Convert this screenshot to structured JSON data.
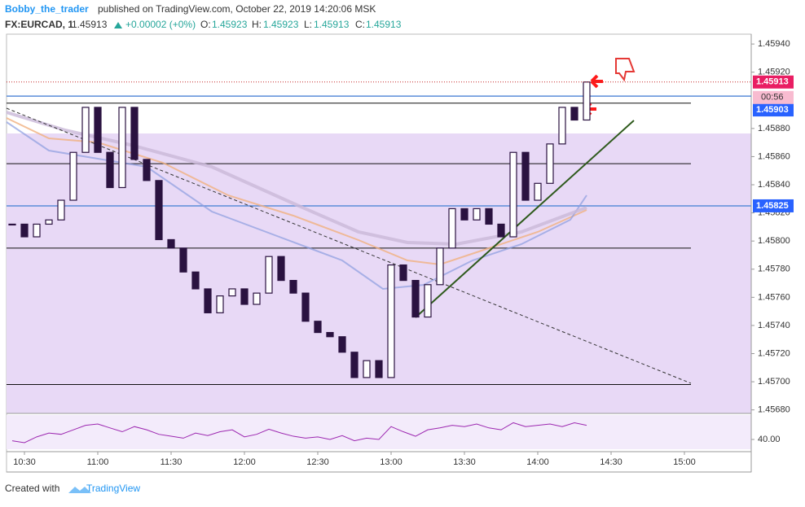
{
  "header": {
    "author": "Bobby_the_trader",
    "published": "published on TradingView.com, October 22, 2019 14:20:06 MSK",
    "symbol": "FX:EURCAD, 1",
    "last": "1.45913",
    "change": "+0.00002 (+0%)",
    "open_label": "O:",
    "open": "1.45923",
    "high_label": "H:",
    "high": "1.45923",
    "low_label": "L:",
    "low": "1.45913",
    "close_label": "C:",
    "close": "1.45913"
  },
  "footer": {
    "created": "Created with",
    "brand": "TradingView"
  },
  "chart_data": {
    "type": "candlestick",
    "x": [
      "10:25",
      "10:30",
      "10:35",
      "10:40",
      "10:45",
      "10:50",
      "10:55",
      "11:00",
      "11:05",
      "11:10",
      "11:15",
      "11:20",
      "11:25",
      "11:30",
      "11:35",
      "11:40",
      "11:45",
      "11:50",
      "11:55",
      "12:00",
      "12:05",
      "12:10",
      "12:15",
      "12:20",
      "12:25",
      "12:30",
      "12:35",
      "12:40",
      "12:45",
      "12:50",
      "12:55",
      "13:00",
      "13:05",
      "13:10",
      "13:15",
      "13:20",
      "13:25",
      "13:30",
      "13:35",
      "13:40",
      "13:45",
      "13:50",
      "13:55",
      "14:00",
      "14:05",
      "14:10",
      "14:15",
      "14:20"
    ],
    "series": [
      {
        "name": "EURCAD",
        "color": "#2a1240",
        "values": [
          1.45812,
          1.45803,
          1.45812,
          1.45815,
          1.45829,
          1.45863,
          1.45895,
          1.45863,
          1.45838,
          1.45895,
          1.45858,
          1.45843,
          1.45801,
          1.45795,
          1.45778,
          1.45766,
          1.45749,
          1.45761,
          1.45766,
          1.45755,
          1.45763,
          1.45789,
          1.45772,
          1.45763,
          1.45743,
          1.45735,
          1.45732,
          1.45721,
          1.45703,
          1.45715,
          1.45703,
          1.45783,
          1.45772,
          1.45746,
          1.45769,
          1.45795,
          1.45823,
          1.45815,
          1.45823,
          1.45812,
          1.45803,
          1.45863,
          1.45829,
          1.45841,
          1.45869,
          1.45895,
          1.45886,
          1.45913
        ]
      },
      {
        "name": "RSI",
        "color": "#9c27b0",
        "axis": "y2",
        "values": [
          38,
          35,
          44,
          50,
          48,
          55,
          62,
          64,
          58,
          52,
          60,
          55,
          48,
          45,
          42,
          50,
          46,
          52,
          55,
          44,
          48,
          56,
          50,
          45,
          42,
          44,
          40,
          46,
          38,
          42,
          40,
          60,
          52,
          45,
          55,
          58,
          62,
          60,
          64,
          58,
          55,
          66,
          60,
          62,
          64,
          60,
          66,
          62
        ]
      }
    ],
    "ylim": [
      1.456775,
      1.45947
    ],
    "yticks": [
      {
        "value": 1.4594,
        "label": "1.45940"
      },
      {
        "value": 1.4592,
        "label": "1.45920"
      },
      {
        "value": 1.4588,
        "label": "1.45880"
      },
      {
        "value": 1.4586,
        "label": "1.45860"
      },
      {
        "value": 1.4584,
        "label": "1.45840"
      },
      {
        "value": 1.4582,
        "label": "1.45820"
      },
      {
        "value": 1.458,
        "label": "1.45800"
      },
      {
        "value": 1.4578,
        "label": "1.45780"
      },
      {
        "value": 1.4576,
        "label": "1.45760"
      },
      {
        "value": 1.4574,
        "label": "1.45740"
      },
      {
        "value": 1.4572,
        "label": "1.45720"
      },
      {
        "value": 1.457,
        "label": "1.45700"
      },
      {
        "value": 1.4568,
        "label": "1.45680"
      }
    ],
    "y2lim": [
      21,
      78
    ],
    "y2ticks": [
      {
        "value": 40,
        "label": "40.00"
      }
    ],
    "xticks": [
      "10:30",
      "11:00",
      "11:30",
      "12:00",
      "12:30",
      "13:00",
      "13:30",
      "14:00",
      "14:30",
      "15:00"
    ],
    "levels": [
      1.45898,
      1.45855,
      1.45795,
      1.45698
    ],
    "blue_levels": [
      1.45903,
      1.45825
    ],
    "price_labels": [
      {
        "value": 1.45913,
        "label": "1.45913"
      },
      {
        "value": 1.45903,
        "label": "1.45903"
      },
      {
        "value": 1.45825,
        "label": "1.45825"
      }
    ],
    "countdown": "00:56"
  }
}
